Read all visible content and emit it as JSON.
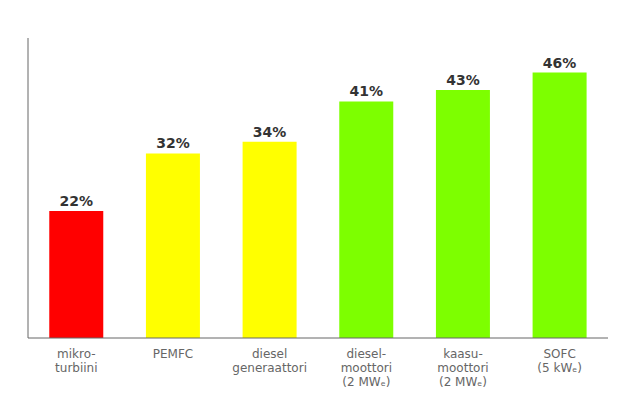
{
  "chart_data": {
    "type": "bar",
    "categories": [
      "mikro-\nturbiini",
      "PEMFC",
      "diesel\ngeneraattori",
      "diesel-\nmoottori\n(2 MWₑ)",
      "kaasu-\nmoottori\n(2 MWₑ)",
      "SOFC\n(5 kWₑ)"
    ],
    "values": [
      22,
      32,
      34,
      41,
      43,
      46
    ],
    "value_labels": [
      "22%",
      "32%",
      "34%",
      "41%",
      "43%",
      "46%"
    ],
    "colors": [
      "#ff0000",
      "#ffff00",
      "#ffff00",
      "#7dff00",
      "#7dff00",
      "#7dff00"
    ],
    "ylim": [
      0,
      52
    ],
    "data_labels": true,
    "tick_labels": "x",
    "grid": false
  }
}
